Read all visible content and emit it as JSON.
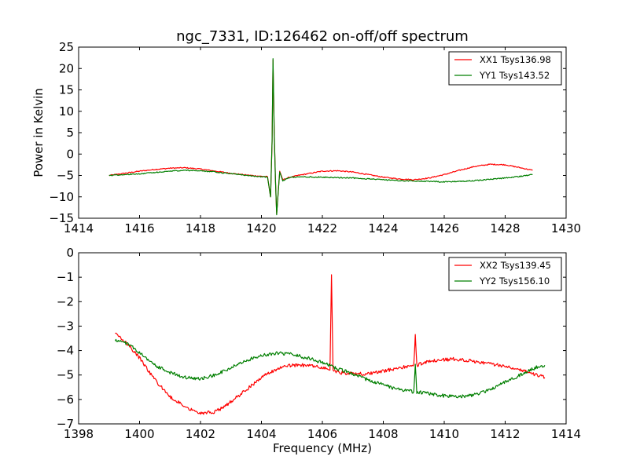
{
  "colors": {
    "red": "#ff0000",
    "green": "#007f00"
  },
  "chart_data": [
    {
      "type": "line",
      "title": "ngc_7331, ID:126462 on-off/off spectrum",
      "xlabel": "",
      "ylabel": "Power in Kelvin",
      "xlim": [
        1414,
        1430
      ],
      "ylim": [
        -15,
        25
      ],
      "xticks": [
        "1414",
        "1416",
        "1418",
        "1420",
        "1422",
        "1424",
        "1426",
        "1428",
        "1430"
      ],
      "yticks": [
        "25",
        "20",
        "15",
        "10",
        "5",
        "0",
        "−5",
        "−10",
        "−15"
      ],
      "legend_position": "top-right",
      "series": [
        {
          "name": "XX1 Tsys136.98",
          "color": "#ff0000",
          "x": [
            1415.0,
            1415.5,
            1416.0,
            1416.5,
            1417.0,
            1417.5,
            1418.0,
            1418.5,
            1419.0,
            1419.5,
            1420.0,
            1420.2,
            1420.3,
            1420.35,
            1420.38,
            1420.42,
            1420.46,
            1420.5,
            1420.55,
            1420.6,
            1420.7,
            1420.9,
            1421.2,
            1421.6,
            1422.0,
            1422.5,
            1423.0,
            1423.5,
            1424.0,
            1424.5,
            1425.0,
            1425.5,
            1426.0,
            1426.5,
            1427.0,
            1427.5,
            1428.0,
            1428.5,
            1428.9
          ],
          "y": [
            -5.0,
            -4.5,
            -4.0,
            -3.6,
            -3.3,
            -3.2,
            -3.5,
            -4.0,
            -4.5,
            -4.9,
            -5.2,
            -5.3,
            -10.0,
            3.0,
            22.0,
            5.0,
            -6.0,
            -14.0,
            -9.0,
            -4.0,
            -6.0,
            -5.5,
            -5.0,
            -4.5,
            -4.0,
            -3.9,
            -4.2,
            -4.8,
            -5.4,
            -5.8,
            -6.0,
            -5.6,
            -4.8,
            -3.8,
            -2.9,
            -2.4,
            -2.5,
            -3.2,
            -3.8
          ]
        },
        {
          "name": "YY1 Tsys143.52",
          "color": "#007f00",
          "x": [
            1415.0,
            1415.5,
            1416.0,
            1416.5,
            1417.0,
            1417.5,
            1418.0,
            1418.5,
            1419.0,
            1419.5,
            1420.0,
            1420.2,
            1420.3,
            1420.35,
            1420.38,
            1420.42,
            1420.46,
            1420.5,
            1420.55,
            1420.6,
            1420.7,
            1420.9,
            1421.2,
            1422.0,
            1422.5,
            1423.0,
            1423.5,
            1424.0,
            1424.5,
            1425.0,
            1425.5,
            1426.0,
            1426.5,
            1427.0,
            1427.5,
            1428.0,
            1428.5,
            1428.9
          ],
          "y": [
            -5.0,
            -4.8,
            -4.6,
            -4.3,
            -4.0,
            -3.8,
            -3.9,
            -4.2,
            -4.6,
            -5.0,
            -5.3,
            -5.4,
            -10.0,
            3.0,
            22.3,
            5.0,
            -6.0,
            -14.2,
            -9.0,
            -4.2,
            -6.2,
            -5.5,
            -5.3,
            -5.4,
            -5.5,
            -5.6,
            -5.8,
            -6.0,
            -6.2,
            -6.3,
            -6.4,
            -6.5,
            -6.4,
            -6.2,
            -5.9,
            -5.6,
            -5.2,
            -4.8
          ]
        }
      ]
    },
    {
      "type": "line",
      "title": "",
      "xlabel": "Frequency (MHz)",
      "ylabel": "",
      "xlim": [
        1398,
        1414
      ],
      "ylim": [
        -7,
        0
      ],
      "xticks": [
        "1398",
        "1400",
        "1402",
        "1404",
        "1406",
        "1408",
        "1410",
        "1412",
        "1414"
      ],
      "yticks": [
        "0",
        "−1",
        "−2",
        "−3",
        "−4",
        "−5",
        "−6",
        "−7"
      ],
      "legend_position": "top-right",
      "series": [
        {
          "name": "XX2 Tsys139.45",
          "color": "#ff0000",
          "x": [
            1399.2,
            1399.5,
            1400.0,
            1400.5,
            1401.0,
            1401.5,
            1402.0,
            1402.5,
            1403.0,
            1403.5,
            1404.0,
            1404.5,
            1405.0,
            1405.5,
            1406.0,
            1406.2,
            1406.25,
            1406.3,
            1406.35,
            1406.4,
            1406.6,
            1407.0,
            1407.5,
            1408.0,
            1408.5,
            1408.9,
            1409.0,
            1409.05,
            1409.1,
            1409.3,
            1409.8,
            1410.3,
            1410.8,
            1411.3,
            1411.8,
            1412.3,
            1412.8,
            1413.3
          ],
          "y": [
            -3.3,
            -3.6,
            -4.3,
            -5.2,
            -5.9,
            -6.3,
            -6.55,
            -6.5,
            -6.1,
            -5.6,
            -5.1,
            -4.75,
            -4.6,
            -4.6,
            -4.7,
            -4.75,
            -4.8,
            -0.9,
            -4.8,
            -4.85,
            -4.9,
            -4.95,
            -4.95,
            -4.85,
            -4.7,
            -4.65,
            -4.6,
            -3.4,
            -4.6,
            -4.5,
            -4.4,
            -4.35,
            -4.4,
            -4.5,
            -4.6,
            -4.7,
            -4.9,
            -5.1
          ]
        },
        {
          "name": "YY2 Tsys156.10",
          "color": "#007f00",
          "x": [
            1399.2,
            1399.6,
            1400.0,
            1400.5,
            1401.0,
            1401.5,
            1402.0,
            1402.5,
            1403.0,
            1403.5,
            1404.0,
            1404.5,
            1405.0,
            1405.5,
            1406.0,
            1406.5,
            1407.0,
            1407.5,
            1408.0,
            1408.5,
            1408.9,
            1409.0,
            1409.05,
            1409.1,
            1409.5,
            1410.0,
            1410.5,
            1411.0,
            1411.5,
            1412.0,
            1412.5,
            1413.0,
            1413.3
          ],
          "y": [
            -3.6,
            -3.7,
            -4.1,
            -4.6,
            -4.9,
            -5.1,
            -5.15,
            -5.0,
            -4.7,
            -4.4,
            -4.2,
            -4.1,
            -4.15,
            -4.3,
            -4.5,
            -4.75,
            -4.95,
            -5.2,
            -5.4,
            -5.6,
            -5.65,
            -5.7,
            -4.6,
            -5.7,
            -5.75,
            -5.85,
            -5.9,
            -5.8,
            -5.6,
            -5.3,
            -5.0,
            -4.7,
            -4.6
          ]
        }
      ]
    }
  ]
}
